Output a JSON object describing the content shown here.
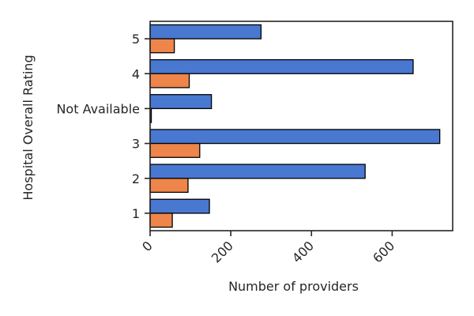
{
  "chart_data": {
    "type": "bar",
    "orientation": "horizontal",
    "title": "",
    "xlabel": "Number of providers",
    "ylabel": "Hospital Overall Rating",
    "categories": [
      "5",
      "4",
      "Not Available",
      "3",
      "2",
      "1"
    ],
    "xlim": [
      0,
      750
    ],
    "xticks": [
      0,
      200,
      400,
      600
    ],
    "grid": false,
    "series": [
      {
        "color": "#4878d0",
        "values": [
          275,
          652,
          152,
          718,
          533,
          147
        ]
      },
      {
        "color": "#ee854a",
        "values": [
          60,
          97,
          3,
          123,
          94,
          55
        ]
      }
    ]
  }
}
